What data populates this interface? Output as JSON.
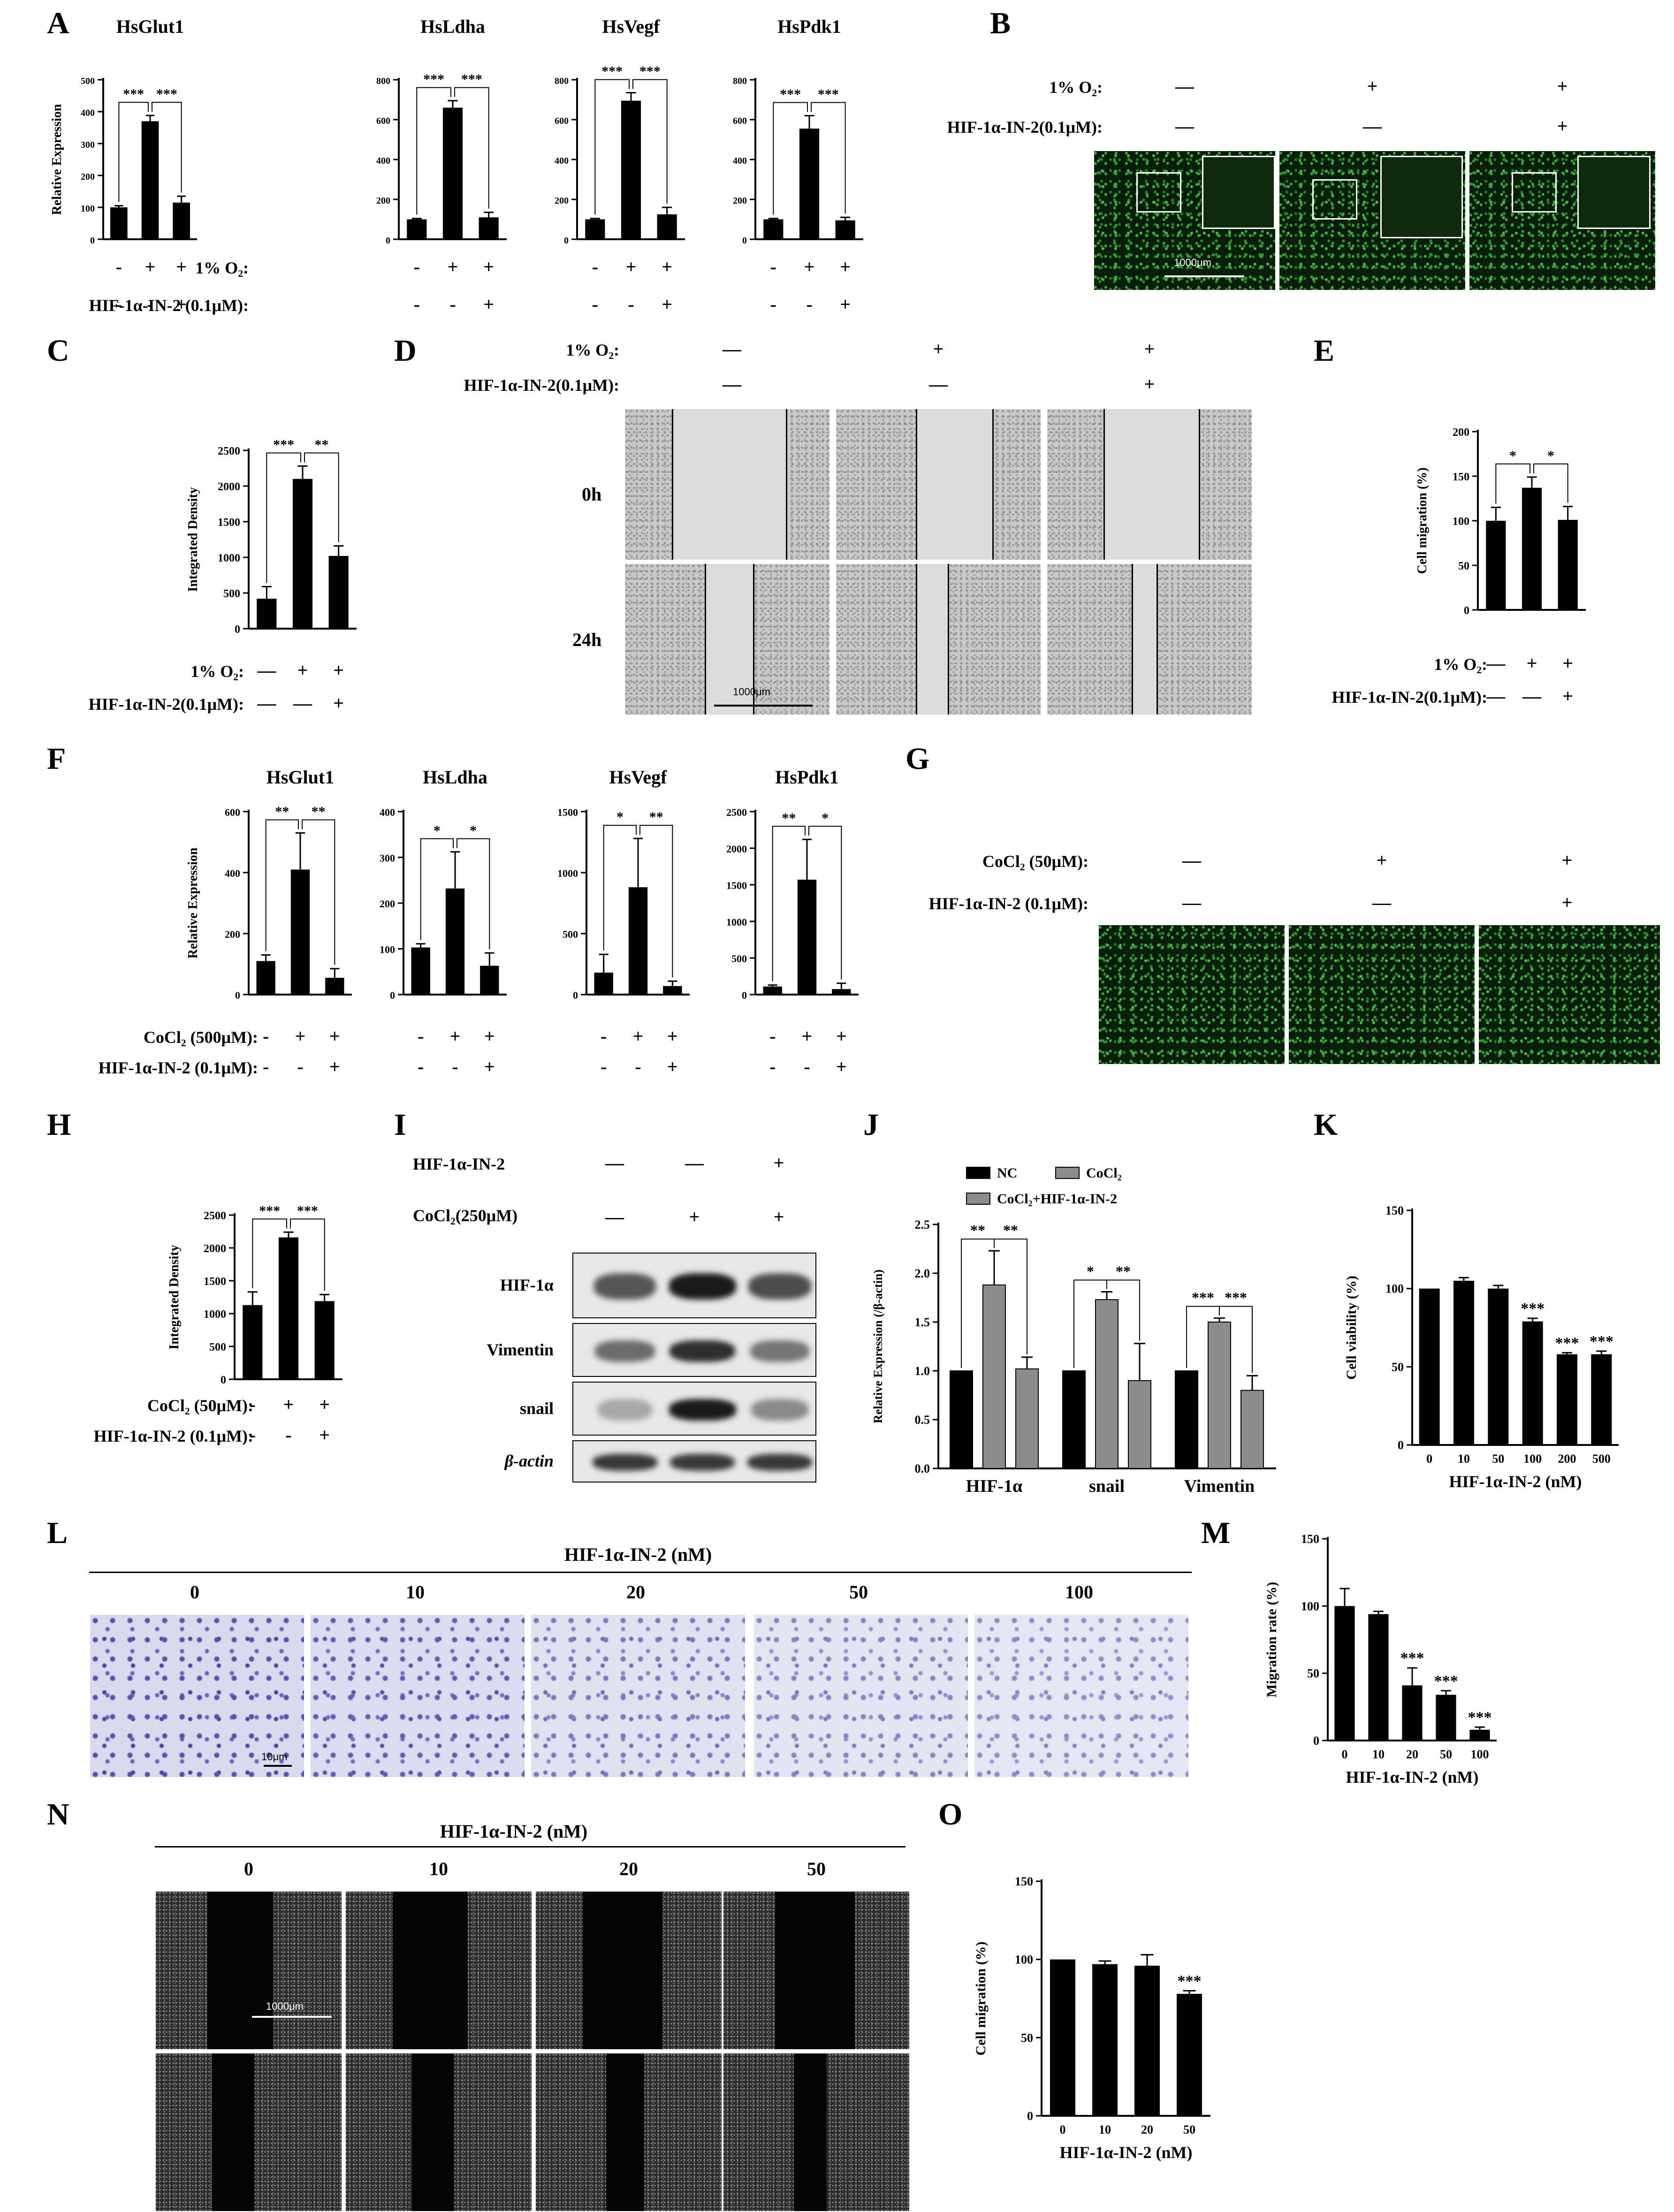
{
  "panels": {
    "A": "A",
    "B": "B",
    "C": "C",
    "D": "D",
    "E": "E",
    "F": "F",
    "G": "G",
    "H": "H",
    "I": "I",
    "J": "J",
    "K": "K",
    "L": "L",
    "M": "M",
    "N": "N",
    "O": "O"
  },
  "labels": {
    "o2": "1% O₂:",
    "hif_a": "HIF-1α-IN-2 (0.1μM):",
    "hif_b": "HIF-1α-IN-2(0.1μM):",
    "hif_d": "HIF-1α-IN-2(0.1μM):",
    "cocl2_f": "CoCl₂ (500μM):",
    "hif_f": "HIF-1α-IN-2 (0.1μM):",
    "cocl2_g": "CoCl₂ (50μM):",
    "hif_g": "HIF-1α-IN-2 (0.1μM):",
    "cocl2_h": "CoCl₂ (50μM):",
    "hif_h": "HIF-1α-IN-2 (0.1μM):",
    "hif_i": "HIF-1α-IN-2",
    "cocl2_i": "CoCl₂(250μM)",
    "t0h": "0h",
    "t24h": "24h",
    "scale_1000": "1000μm",
    "scale_10": "10μm",
    "hif_nm": "HIF-1α-IN-2 (nM)",
    "plus": "+",
    "minus": "-",
    "dash": "—"
  },
  "signs": {
    "A_o2": [
      "-",
      "+",
      "+"
    ],
    "A_hif": [
      "-",
      "-",
      "+"
    ],
    "B_o2": [
      "—",
      "+",
      "+"
    ],
    "B_hif": [
      "—",
      "—",
      "+"
    ],
    "C_o2": [
      "—",
      "+",
      "+"
    ],
    "C_hif": [
      "—",
      "—",
      "+"
    ],
    "D_o2": [
      "—",
      "+",
      "+"
    ],
    "D_hif": [
      "—",
      "—",
      "+"
    ],
    "E_o2": [
      "—",
      "+",
      "+"
    ],
    "E_hif": [
      "—",
      "—",
      "+"
    ],
    "F_co": [
      "-",
      "+",
      "+"
    ],
    "F_hif": [
      "-",
      "-",
      "+"
    ],
    "G_co": [
      "—",
      "+",
      "+"
    ],
    "G_hif": [
      "—",
      "—",
      "+"
    ],
    "H_co": [
      "-",
      "+",
      "+"
    ],
    "H_hif": [
      "-",
      "-",
      "+"
    ],
    "I_hif": [
      "—",
      "—",
      "+"
    ],
    "I_co": [
      "—",
      "+",
      "+"
    ]
  },
  "blot": {
    "rows": [
      "HIF-1α",
      "Vimentin",
      "snail",
      "β-actin"
    ]
  },
  "L_doses": [
    "0",
    "10",
    "20",
    "50",
    "100"
  ],
  "N_doses": [
    "0",
    "10",
    "20",
    "50"
  ],
  "chart_data": [
    {
      "id": "A1",
      "type": "bar",
      "title": "HsGlut1",
      "ylabel": "Relative Expression",
      "ylim": [
        0,
        500
      ],
      "yticks": [
        0,
        100,
        200,
        300,
        400,
        500
      ],
      "values": [
        100,
        370,
        115
      ],
      "errors": [
        5,
        18,
        20
      ],
      "sig": [
        {
          "from": 0,
          "to": 1,
          "label": "***"
        },
        {
          "from": 1,
          "to": 2,
          "label": "***"
        }
      ]
    },
    {
      "id": "A2",
      "type": "bar",
      "title": "HsLdha",
      "ylabel": "",
      "ylim": [
        0,
        800
      ],
      "yticks": [
        0,
        200,
        400,
        600,
        800
      ],
      "values": [
        100,
        660,
        110
      ],
      "errors": [
        4,
        35,
        25
      ],
      "sig": [
        {
          "from": 0,
          "to": 1,
          "label": "***"
        },
        {
          "from": 1,
          "to": 2,
          "label": "***"
        }
      ]
    },
    {
      "id": "A3",
      "type": "bar",
      "title": "HsVegf",
      "ylabel": "",
      "ylim": [
        0,
        800
      ],
      "yticks": [
        0,
        200,
        400,
        600,
        800
      ],
      "values": [
        100,
        695,
        125
      ],
      "errors": [
        4,
        40,
        35
      ],
      "sig": [
        {
          "from": 0,
          "to": 1,
          "label": "***"
        },
        {
          "from": 1,
          "to": 2,
          "label": "***"
        }
      ]
    },
    {
      "id": "A4",
      "type": "bar",
      "title": "HsPdk1",
      "ylabel": "",
      "ylim": [
        0,
        800
      ],
      "yticks": [
        0,
        200,
        400,
        600,
        800
      ],
      "values": [
        100,
        555,
        95
      ],
      "errors": [
        4,
        65,
        15
      ],
      "sig": [
        {
          "from": 0,
          "to": 1,
          "label": "***"
        },
        {
          "from": 1,
          "to": 2,
          "label": "***"
        }
      ]
    },
    {
      "id": "C",
      "type": "bar",
      "title": "",
      "ylabel": "Integrated Density",
      "ylim": [
        0,
        2500
      ],
      "yticks": [
        0,
        500,
        1000,
        1500,
        2000,
        2500
      ],
      "values": [
        420,
        2100,
        1020
      ],
      "errors": [
        170,
        180,
        140
      ],
      "sig": [
        {
          "from": 0,
          "to": 1,
          "label": "***"
        },
        {
          "from": 1,
          "to": 2,
          "label": "**"
        }
      ]
    },
    {
      "id": "E",
      "type": "bar",
      "title": "",
      "ylabel": "Cell migration (%)",
      "ylim": [
        0,
        200
      ],
      "yticks": [
        0,
        50,
        100,
        150,
        200
      ],
      "values": [
        100,
        137,
        101
      ],
      "errors": [
        15,
        12,
        15
      ],
      "sig": [
        {
          "from": 0,
          "to": 1,
          "label": "*"
        },
        {
          "from": 1,
          "to": 2,
          "label": "*"
        }
      ]
    },
    {
      "id": "F1",
      "type": "bar",
      "title": "HsGlut1",
      "ylabel": "Relative Expression",
      "ylim": [
        0,
        600
      ],
      "yticks": [
        0,
        200,
        400,
        600
      ],
      "values": [
        110,
        410,
        55
      ],
      "errors": [
        20,
        120,
        30
      ],
      "sig": [
        {
          "from": 0,
          "to": 1,
          "label": "**"
        },
        {
          "from": 1,
          "to": 2,
          "label": "**"
        }
      ]
    },
    {
      "id": "F2",
      "type": "bar",
      "title": "HsLdha",
      "ylabel": "",
      "ylim": [
        0,
        400
      ],
      "yticks": [
        0,
        100,
        200,
        300,
        400
      ],
      "values": [
        103,
        232,
        63
      ],
      "errors": [
        8,
        80,
        28
      ],
      "sig": [
        {
          "from": 0,
          "to": 1,
          "label": "*"
        },
        {
          "from": 1,
          "to": 2,
          "label": "*"
        }
      ]
    },
    {
      "id": "F3",
      "type": "bar",
      "title": "HsVegf",
      "ylabel": "",
      "ylim": [
        0,
        1500
      ],
      "yticks": [
        0,
        500,
        1000,
        1500
      ],
      "values": [
        180,
        880,
        70
      ],
      "errors": [
        150,
        400,
        40
      ],
      "sig": [
        {
          "from": 0,
          "to": 1,
          "label": "*"
        },
        {
          "from": 1,
          "to": 2,
          "label": "**"
        }
      ]
    },
    {
      "id": "F4",
      "type": "bar",
      "title": "HsPdk1",
      "ylabel": "",
      "ylim": [
        0,
        2500
      ],
      "yticks": [
        0,
        500,
        1000,
        1500,
        2000,
        2500
      ],
      "values": [
        110,
        1570,
        75
      ],
      "errors": [
        20,
        550,
        80
      ],
      "sig": [
        {
          "from": 0,
          "to": 1,
          "label": "**"
        },
        {
          "from": 1,
          "to": 2,
          "label": "*"
        }
      ]
    },
    {
      "id": "H",
      "type": "bar",
      "title": "",
      "ylabel": "Integrated Density",
      "ylim": [
        0,
        2500
      ],
      "yticks": [
        0,
        500,
        1000,
        1500,
        2000,
        2500
      ],
      "values": [
        1130,
        2160,
        1190
      ],
      "errors": [
        200,
        80,
        100
      ],
      "sig": [
        {
          "from": 0,
          "to": 1,
          "label": "***"
        },
        {
          "from": 1,
          "to": 2,
          "label": "***"
        }
      ]
    },
    {
      "id": "J",
      "type": "bar",
      "title": "",
      "ylabel": "Relative Expression (/β-actin)",
      "ylim": [
        0,
        2.5
      ],
      "yticks": [
        0.0,
        0.5,
        1.0,
        1.5,
        2.0,
        2.5
      ],
      "categories": [
        "HIF-1α",
        "snail",
        "Vimentin"
      ],
      "series": [
        {
          "name": "NC",
          "values": [
            1.0,
            1.0,
            1.0
          ],
          "errors": [
            0,
            0,
            0
          ]
        },
        {
          "name": "CoCl₂",
          "values": [
            1.88,
            1.73,
            1.5
          ],
          "errors": [
            0.35,
            0.08,
            0.04
          ]
        },
        {
          "name": "CoCl₂+HIF-1α-IN-2",
          "values": [
            1.02,
            0.9,
            0.8
          ],
          "errors": [
            0.12,
            0.38,
            0.15
          ]
        }
      ],
      "sig": [
        [
          "**",
          "**"
        ],
        [
          "*",
          "**"
        ],
        [
          "***",
          "***"
        ]
      ]
    },
    {
      "id": "K",
      "type": "bar",
      "title": "",
      "ylabel": "Cell viability (%)",
      "xlabel": "HIF-1α-IN-2 (nM)",
      "ylim": [
        0,
        150
      ],
      "yticks": [
        0,
        50,
        100,
        150
      ],
      "categories": [
        "0",
        "10",
        "50",
        "100",
        "200",
        "500"
      ],
      "values": [
        100,
        105,
        100,
        79,
        58,
        58
      ],
      "errors": [
        0,
        2,
        2,
        2,
        1,
        2
      ],
      "stars": [
        "",
        "",
        "",
        "***",
        "***",
        "***"
      ]
    },
    {
      "id": "M",
      "type": "bar",
      "title": "",
      "ylabel": "Migration rate (%)",
      "xlabel": "HIF-1α-IN-2 (nM)",
      "ylim": [
        0,
        150
      ],
      "yticks": [
        0,
        50,
        100,
        150
      ],
      "categories": [
        "0",
        "10",
        "20",
        "50",
        "100"
      ],
      "values": [
        100,
        94,
        41,
        34,
        8
      ],
      "errors": [
        13,
        2,
        13,
        3,
        2
      ],
      "stars": [
        "",
        "",
        "***",
        "***",
        "***"
      ]
    },
    {
      "id": "O",
      "type": "bar",
      "title": "",
      "ylabel": "Cell migration (%)",
      "xlabel": "HIF-1α-IN-2 (nM)",
      "ylim": [
        0,
        150
      ],
      "yticks": [
        0,
        50,
        100,
        150
      ],
      "categories": [
        "0",
        "10",
        "20",
        "50"
      ],
      "values": [
        100,
        97,
        96,
        78
      ],
      "errors": [
        0,
        2,
        7,
        2
      ],
      "stars": [
        "",
        "",
        "",
        "***"
      ]
    }
  ]
}
